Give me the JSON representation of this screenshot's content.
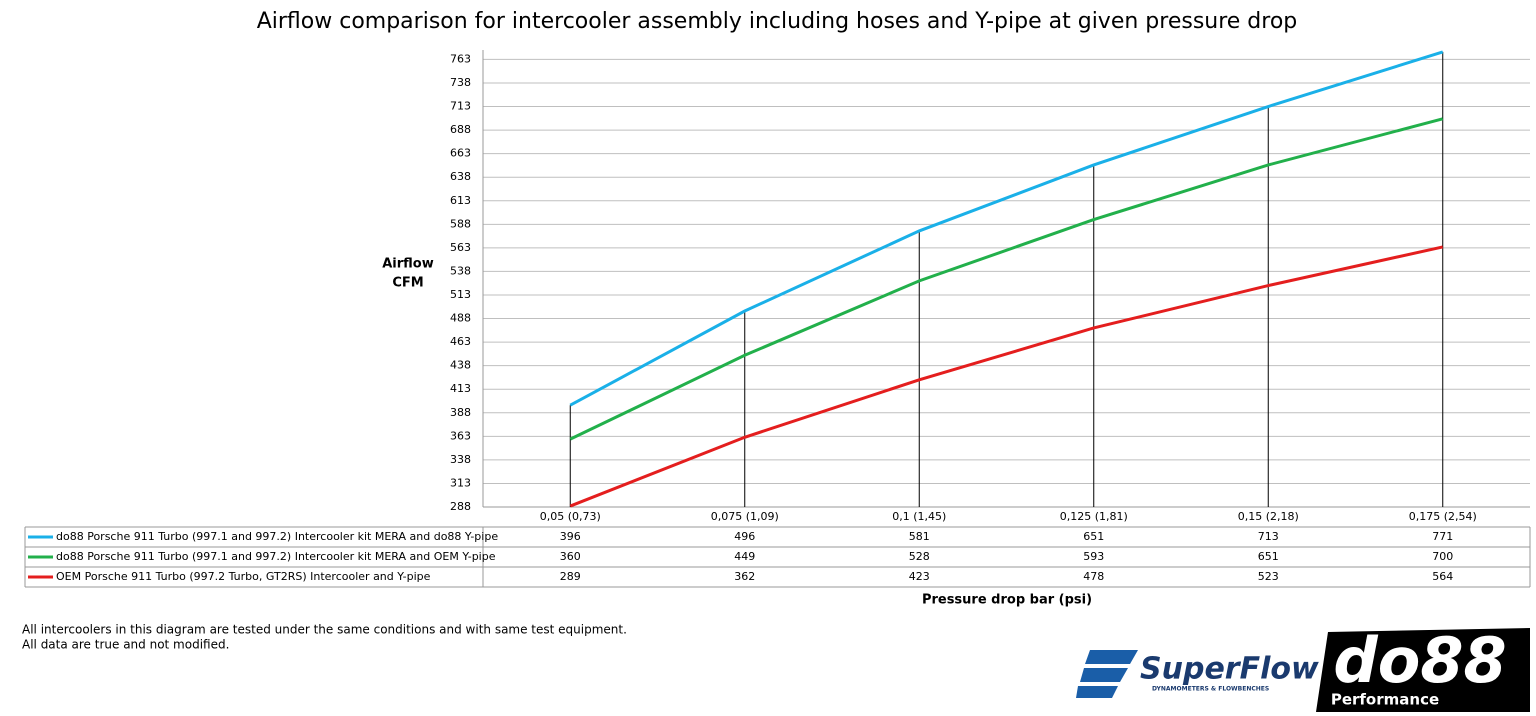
{
  "chart_data": {
    "type": "line",
    "title": "Airflow comparison for intercooler assembly including hoses and Y-pipe at given pressure drop",
    "y_label_lines": [
      "Airflow",
      "CFM"
    ],
    "x_label": "Pressure drop bar (psi)",
    "categories": [
      "0,05 (0,73)",
      "0,075 (1,09)",
      "0,1 (1,45)",
      "0,125 (1,81)",
      "0,15 (2,18)",
      "0,175 (2,54)"
    ],
    "series": [
      {
        "name": "do88 Porsche 911 Turbo (997.1 and 997.2) Intercooler kit MERA and do88 Y-pipe",
        "color": "#1ab0e8",
        "values": [
          396,
          496,
          581,
          651,
          713,
          771
        ]
      },
      {
        "name": "do88 Porsche 911 Turbo (997.1 and 997.2) Intercooler kit MERA and OEM Y-pipe",
        "color": "#22b04b",
        "values": [
          360,
          449,
          528,
          593,
          651,
          700
        ]
      },
      {
        "name": "OEM Porsche 911 Turbo (997.2 Turbo,  GT2RS) Intercooler and Y-pipe",
        "color": "#e41e1e",
        "values": [
          289,
          362,
          423,
          478,
          523,
          564
        ]
      }
    ],
    "ylim": [
      288,
      773
    ],
    "yticks": [
      288,
      313,
      338,
      363,
      388,
      413,
      438,
      463,
      488,
      513,
      538,
      563,
      588,
      613,
      638,
      663,
      688,
      713,
      738,
      763
    ],
    "grid": true,
    "drop_lines": true
  },
  "notes": [
    "All intercoolers in this diagram are tested under the same conditions and with same test equipment.",
    "All data are true and not modified."
  ],
  "logos": {
    "superflow": "SuperFlow",
    "superflow_tagline": "DYNAMOMETERS & FLOWBENCHES",
    "do88": "do88",
    "do88_sub": "Performance"
  }
}
